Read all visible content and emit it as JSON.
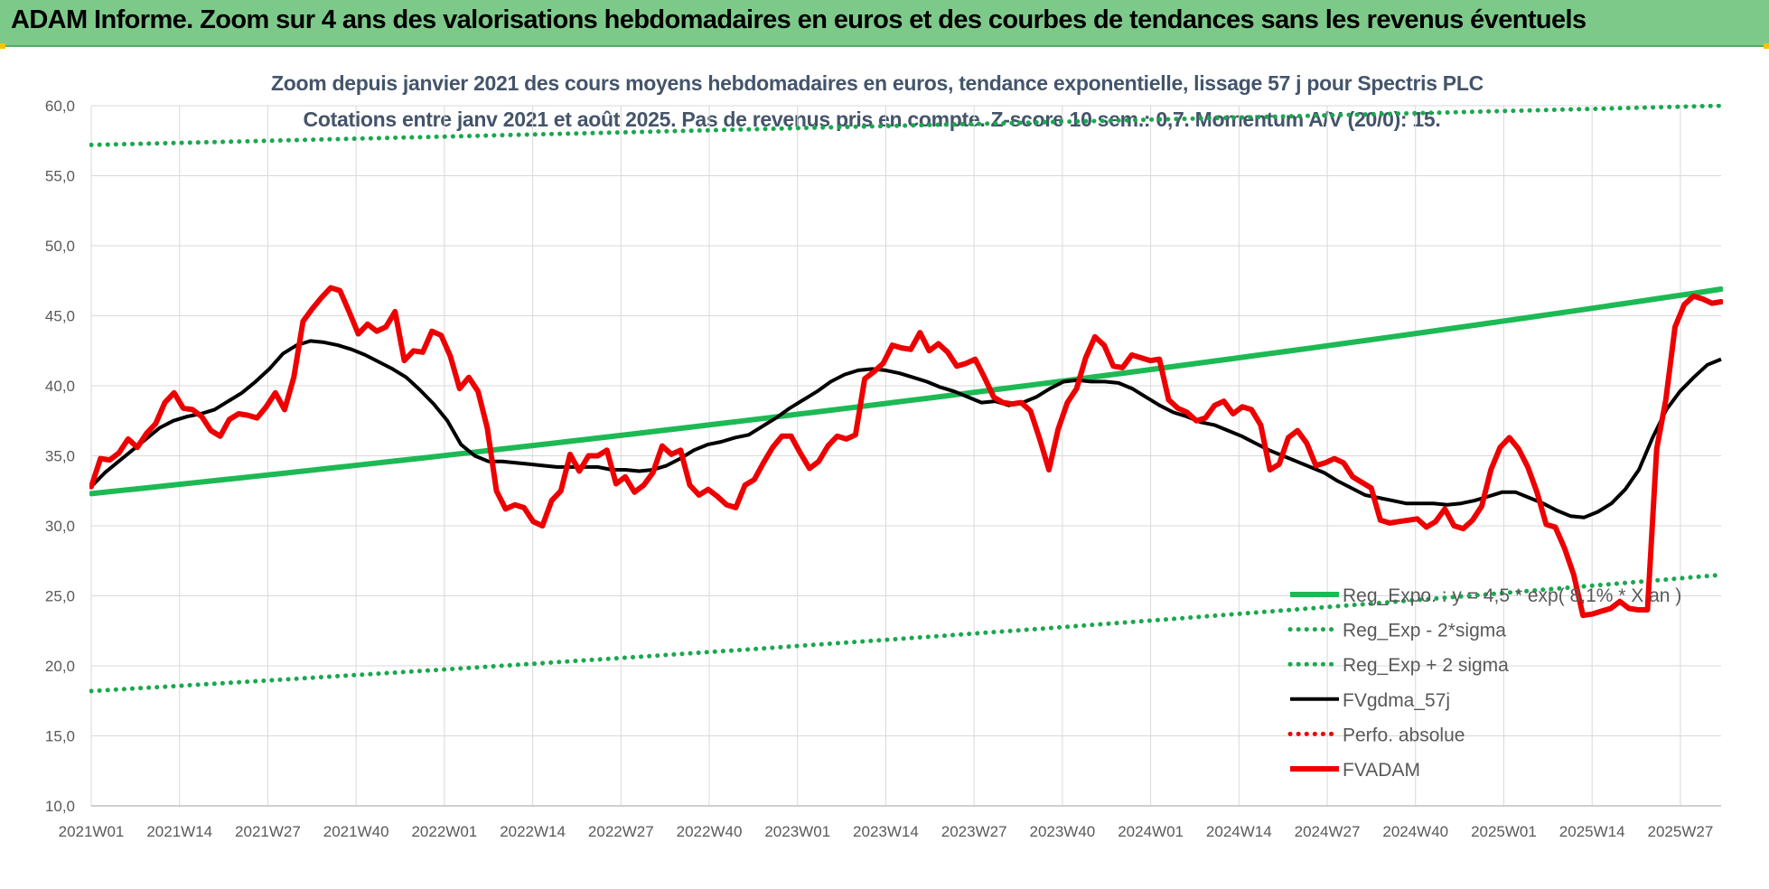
{
  "banner": {
    "title": "ADAM Informe. Zoom sur 4 ans des valorisations hebdomadaires en euros et des courbes de tendances sans les revenus éventuels"
  },
  "colors": {
    "banner_bg": "#7dc98a",
    "trend_green": "#1db954",
    "sigma_green": "#1aa84f",
    "fvgdma_black": "#000000",
    "fvadam_red": "#ee0000",
    "perfo_red": "#ee0000",
    "grid": "#d9d9d9"
  },
  "chart_data": {
    "type": "line",
    "title": "Zoom depuis janvier 2021 des cours moyens hebdomadaires en euros, tendance exponentielle, lissage 57 j pour Spectris PLC",
    "subtitle": "Cotations entre janv 2021 et août 2025.  Pas de revenus pris en compte. Z-score 10 sem.: 0,7. Momentum A/V (20/0): 15.",
    "ylim": [
      10,
      60
    ],
    "yticks": [
      "10,0",
      "15,0",
      "20,0",
      "25,0",
      "30,0",
      "35,0",
      "40,0",
      "45,0",
      "50,0",
      "55,0",
      "60,0"
    ],
    "x_start": "2021W01",
    "x_end": "2025W32",
    "xticks": [
      "2021W01",
      "2021W14",
      "2021W27",
      "2021W40",
      "2022W01",
      "2022W14",
      "2022W27",
      "2022W40",
      "2023W01",
      "2023W14",
      "2023W27",
      "2023W40",
      "2024W01",
      "2024W14",
      "2024W27",
      "2024W40",
      "2025W01",
      "2025W14",
      "2025W27"
    ],
    "grid": true,
    "legend_position": "bottom-right",
    "series": [
      {
        "name": "Reg_Expo. : y = 4,5 * exp( 8,1% * X an )",
        "style": "solid",
        "color": "#1db954",
        "values": [
          32.3,
          46.9
        ]
      },
      {
        "name": "Reg_Exp - 2*sigma",
        "style": "dotted",
        "color": "#1aa84f",
        "values": [
          18.2,
          26.5
        ]
      },
      {
        "name": "Reg_Exp + 2 sigma",
        "style": "dotted",
        "color": "#1aa84f",
        "values": [
          57.2,
          60.0
        ]
      },
      {
        "name": "FVgdma_57j",
        "style": "solid",
        "color": "#000000",
        "values": [
          32.8,
          33.8,
          34.6,
          35.4,
          36.2,
          37.0,
          37.5,
          37.8,
          38.0,
          38.3,
          38.9,
          39.5,
          40.3,
          41.2,
          42.3,
          42.9,
          43.2,
          43.1,
          42.9,
          42.6,
          42.2,
          41.7,
          41.2,
          40.6,
          39.7,
          38.7,
          37.5,
          35.8,
          35.0,
          34.6,
          34.6,
          34.5,
          34.4,
          34.3,
          34.2,
          34.2,
          34.2,
          34.2,
          34.0,
          34.0,
          33.9,
          34.0,
          34.3,
          34.8,
          35.4,
          35.8,
          36.0,
          36.3,
          36.5,
          37.1,
          37.7,
          38.4,
          39.0,
          39.6,
          40.3,
          40.8,
          41.1,
          41.2,
          41.1,
          40.9,
          40.6,
          40.3,
          39.9,
          39.6,
          39.2,
          38.8,
          38.9,
          38.6,
          38.8,
          39.2,
          39.8,
          40.3,
          40.4,
          40.3,
          40.3,
          40.2,
          39.8,
          39.2,
          38.6,
          38.1,
          37.8,
          37.4,
          37.2,
          36.8,
          36.4,
          35.9,
          35.4,
          35.0,
          34.6,
          34.2,
          33.8,
          33.2,
          32.7,
          32.2,
          32.0,
          31.8,
          31.6,
          31.6,
          31.6,
          31.5,
          31.6,
          31.8,
          32.1,
          32.4,
          32.4,
          32.0,
          31.6,
          31.1,
          30.7,
          30.6,
          31.0,
          31.6,
          32.6,
          34.0,
          36.3,
          38.3,
          39.6,
          40.6,
          41.5,
          41.9
        ]
      },
      {
        "name": "Perfo. absolue",
        "style": "dotted",
        "color": "#ee0000",
        "values": []
      },
      {
        "name": "FVADAM",
        "style": "solid",
        "color": "#ee0000",
        "values": [
          32.8,
          34.8,
          34.7,
          35.2,
          36.2,
          35.6,
          36.6,
          37.3,
          38.8,
          39.5,
          38.4,
          38.3,
          37.8,
          36.8,
          36.4,
          37.6,
          38.0,
          37.9,
          37.7,
          38.5,
          39.5,
          38.3,
          40.6,
          44.6,
          45.5,
          46.3,
          47.0,
          46.8,
          45.3,
          43.7,
          44.4,
          43.9,
          44.2,
          45.3,
          41.8,
          42.5,
          42.4,
          43.9,
          43.6,
          42.1,
          39.8,
          40.6,
          39.6,
          37.0,
          32.5,
          31.2,
          31.5,
          31.3,
          30.3,
          30.0,
          31.8,
          32.5,
          35.1,
          33.9,
          35.0,
          35.0,
          35.4,
          33.0,
          33.5,
          32.4,
          32.9,
          33.8,
          35.7,
          35.1,
          35.4,
          32.9,
          32.2,
          32.6,
          32.1,
          31.5,
          31.3,
          32.9,
          33.3,
          34.5,
          35.6,
          36.4,
          36.4,
          35.2,
          34.1,
          34.6,
          35.7,
          36.4,
          36.2,
          36.5,
          40.5,
          41.0,
          41.6,
          42.9,
          42.7,
          42.6,
          43.8,
          42.5,
          43.0,
          42.4,
          41.4,
          41.6,
          41.9,
          40.6,
          39.2,
          38.8,
          38.7,
          38.8,
          38.2,
          36.2,
          34.0,
          36.9,
          38.8,
          39.8,
          42.0,
          43.5,
          42.9,
          41.4,
          41.3,
          42.2,
          42.0,
          41.8,
          41.9,
          39.0,
          38.4,
          38.1,
          37.5,
          37.7,
          38.6,
          38.9,
          38.0,
          38.5,
          38.3,
          37.2,
          34.0,
          34.4,
          36.3,
          36.8,
          35.9,
          34.3,
          34.5,
          34.8,
          34.5,
          33.5,
          33.1,
          32.7,
          30.4,
          30.2,
          30.3,
          30.4,
          30.5,
          29.9,
          30.3,
          31.2,
          30.0,
          29.8,
          30.4,
          31.4,
          34.0,
          35.6,
          36.3,
          35.5,
          34.2,
          32.4,
          30.1,
          29.9,
          28.4,
          26.5,
          23.6,
          23.7,
          23.9,
          24.1,
          24.6,
          24.1,
          24.0,
          24.0,
          35.5,
          39.0,
          44.2,
          45.8,
          46.4,
          46.2,
          45.9,
          46.0
        ]
      }
    ],
    "legend": [
      {
        "label": "Reg_Expo. : y = 4,5 * exp( 8,1% * X an )",
        "style": "solid",
        "color": "#1db954"
      },
      {
        "label": "Reg_Exp - 2*sigma",
        "style": "dotted",
        "color": "#1aa84f"
      },
      {
        "label": "Reg_Exp + 2 sigma",
        "style": "dotted",
        "color": "#1aa84f"
      },
      {
        "label": "FVgdma_57j",
        "style": "solid",
        "color": "#000000"
      },
      {
        "label": "Perfo. absolue",
        "style": "dotted",
        "color": "#ee0000"
      },
      {
        "label": "FVADAM",
        "style": "solid",
        "color": "#ee0000"
      }
    ]
  }
}
